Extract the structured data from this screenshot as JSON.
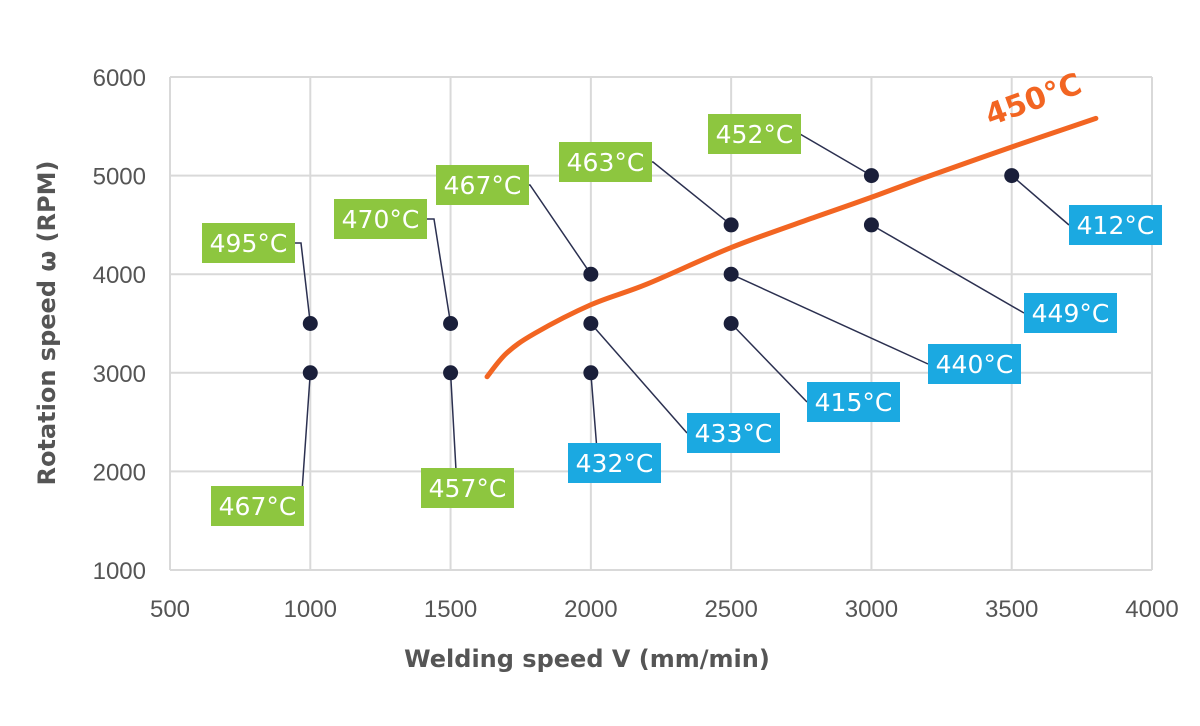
{
  "chart_data": {
    "type": "scatter",
    "xlabel": "Welding speed V (mm/min)",
    "ylabel": "Rotation speed ω (RPM)",
    "xlim": [
      500,
      4000
    ],
    "ylim": [
      1000,
      6000
    ],
    "x_ticks": [
      "500",
      "1000",
      "1500",
      "2000",
      "2500",
      "3000",
      "3500",
      "4000"
    ],
    "y_ticks": [
      "1000",
      "2000",
      "3000",
      "4000",
      "5000",
      "6000"
    ],
    "grid": true,
    "colors": {
      "above_450": "#8dc63f",
      "below_450": "#1ba9e1",
      "curve": "#f26522",
      "point": "#1a1f3a",
      "grid": "#d9d9d9",
      "leader": "#2b3050"
    },
    "points": [
      {
        "x": 1000,
        "y": 3500,
        "label": "495°C",
        "group": "above_450"
      },
      {
        "x": 1000,
        "y": 3000,
        "label": "467°C",
        "group": "above_450"
      },
      {
        "x": 1500,
        "y": 3500,
        "label": "470°C",
        "group": "above_450"
      },
      {
        "x": 1500,
        "y": 3000,
        "label": "457°C",
        "group": "above_450"
      },
      {
        "x": 2000,
        "y": 4000,
        "label": "467°C",
        "group": "above_450"
      },
      {
        "x": 2000,
        "y": 3500,
        "label": "433°C",
        "group": "below_450"
      },
      {
        "x": 2000,
        "y": 3000,
        "label": "432°C",
        "group": "below_450"
      },
      {
        "x": 2500,
        "y": 4500,
        "label": "463°C",
        "group": "above_450"
      },
      {
        "x": 2500,
        "y": 4000,
        "label": "440°C",
        "group": "below_450"
      },
      {
        "x": 2500,
        "y": 3500,
        "label": "415°C",
        "group": "below_450"
      },
      {
        "x": 3000,
        "y": 5000,
        "label": "452°C",
        "group": "above_450"
      },
      {
        "x": 3000,
        "y": 4500,
        "label": "449°C",
        "group": "below_450"
      },
      {
        "x": 3500,
        "y": 5000,
        "label": "412°C",
        "group": "below_450"
      }
    ],
    "curve": {
      "label": "450°C",
      "points": [
        [
          1630,
          2960
        ],
        [
          1700,
          3200
        ],
        [
          1800,
          3400
        ],
        [
          2000,
          3690
        ],
        [
          2200,
          3900
        ],
        [
          2500,
          4270
        ],
        [
          2800,
          4580
        ],
        [
          3000,
          4780
        ],
        [
          3200,
          4990
        ],
        [
          3500,
          5290
        ],
        [
          3800,
          5580
        ]
      ]
    }
  }
}
